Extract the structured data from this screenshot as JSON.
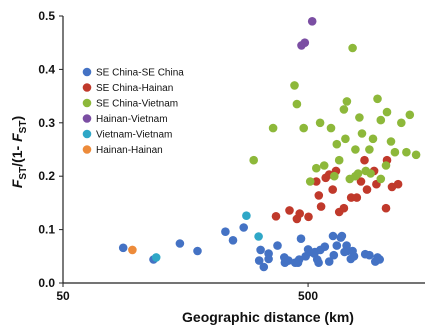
{
  "chart_data": {
    "type": "scatter",
    "title": "",
    "xlabel": "Geographic distance (km)",
    "ylabel_parts": {
      "main": "F",
      "sub": "ST",
      "mid": "/(1- ",
      "main2": "F",
      "sub2": "ST",
      "end": ")"
    },
    "xscale": "log",
    "xlim": [
      50,
      1500
    ],
    "ylim": [
      0,
      0.5
    ],
    "xticks": [
      {
        "value": 50,
        "label": "50"
      },
      {
        "value": 500,
        "label": "500"
      }
    ],
    "yticks": [
      {
        "value": 0.0,
        "label": "0.0"
      },
      {
        "value": 0.1,
        "label": "0.1"
      },
      {
        "value": 0.2,
        "label": "0.2"
      },
      {
        "value": 0.3,
        "label": "0.3"
      },
      {
        "value": 0.4,
        "label": "0.4"
      },
      {
        "value": 0.5,
        "label": "0.5"
      }
    ],
    "grid": false,
    "legend_position": "top-left",
    "series": [
      {
        "name": "SE China-SE China",
        "color": "#4472C4",
        "points": [
          [
            88,
            0.066
          ],
          [
            117,
            0.044
          ],
          [
            150,
            0.074
          ],
          [
            177,
            0.06
          ],
          [
            230,
            0.096
          ],
          [
            247,
            0.08
          ],
          [
            273,
            0.104
          ],
          [
            316,
            0.042
          ],
          [
            330,
            0.03
          ],
          [
            345,
            0.055
          ],
          [
            375,
            0.07
          ],
          [
            400,
            0.048
          ],
          [
            416,
            0.042
          ],
          [
            443,
            0.038
          ],
          [
            460,
            0.044
          ],
          [
            468,
            0.083
          ],
          [
            489,
            0.05
          ],
          [
            500,
            0.063
          ],
          [
            510,
            0.058
          ],
          [
            530,
            0.055
          ],
          [
            545,
            0.044
          ],
          [
            552,
            0.038
          ],
          [
            561,
            0.062
          ],
          [
            585,
            0.068
          ],
          [
            610,
            0.04
          ],
          [
            637,
            0.052
          ],
          [
            655,
            0.07
          ],
          [
            680,
            0.085
          ],
          [
            704,
            0.058
          ],
          [
            725,
            0.06
          ],
          [
            747,
            0.045
          ],
          [
            770,
            0.05
          ],
          [
            855,
            0.054
          ],
          [
            890,
            0.052
          ],
          [
            940,
            0.04
          ],
          [
            960,
            0.048
          ],
          [
            320,
            0.062
          ],
          [
            345,
            0.045
          ],
          [
            402,
            0.038
          ],
          [
            455,
            0.038
          ],
          [
            533,
            0.058
          ],
          [
            632,
            0.088
          ],
          [
            687,
            0.088
          ],
          [
            718,
            0.07
          ],
          [
            760,
            0.06
          ],
          [
            980,
            0.044
          ]
        ]
      },
      {
        "name": "SE China-Hainan",
        "color": "#C0392B",
        "points": [
          [
            370,
            0.125
          ],
          [
            420,
            0.136
          ],
          [
            450,
            0.12
          ],
          [
            462,
            0.13
          ],
          [
            502,
            0.124
          ],
          [
            540,
            0.19
          ],
          [
            553,
            0.164
          ],
          [
            565,
            0.143
          ],
          [
            590,
            0.197
          ],
          [
            610,
            0.203
          ],
          [
            630,
            0.175
          ],
          [
            650,
            0.21
          ],
          [
            670,
            0.133
          ],
          [
            700,
            0.14
          ],
          [
            750,
            0.16
          ],
          [
            790,
            0.16
          ],
          [
            822,
            0.19
          ],
          [
            850,
            0.23
          ],
          [
            870,
            0.175
          ],
          [
            930,
            0.21
          ],
          [
            950,
            0.185
          ],
          [
            1040,
            0.14
          ],
          [
            1100,
            0.18
          ],
          [
            1050,
            0.23
          ],
          [
            1165,
            0.185
          ]
        ]
      },
      {
        "name": "SE China-Vietnam",
        "color": "#8DB83A",
        "points": [
          [
            300,
            0.23
          ],
          [
            360,
            0.29
          ],
          [
            440,
            0.37
          ],
          [
            450,
            0.335
          ],
          [
            480,
            0.29
          ],
          [
            510,
            0.19
          ],
          [
            540,
            0.215
          ],
          [
            560,
            0.3
          ],
          [
            582,
            0.22
          ],
          [
            620,
            0.29
          ],
          [
            640,
            0.2
          ],
          [
            670,
            0.23
          ],
          [
            700,
            0.325
          ],
          [
            720,
            0.34
          ],
          [
            760,
            0.44
          ],
          [
            780,
            0.25
          ],
          [
            800,
            0.205
          ],
          [
            830,
            0.28
          ],
          [
            860,
            0.21
          ],
          [
            890,
            0.25
          ],
          [
            920,
            0.27
          ],
          [
            960,
            0.345
          ],
          [
            990,
            0.305
          ],
          [
            1050,
            0.32
          ],
          [
            1090,
            0.265
          ],
          [
            1130,
            0.245
          ],
          [
            1200,
            0.3
          ],
          [
            1260,
            0.245
          ],
          [
            1300,
            0.315
          ],
          [
            1380,
            0.24
          ],
          [
            740,
            0.195
          ],
          [
            780,
            0.2
          ],
          [
            900,
            0.205
          ],
          [
            990,
            0.195
          ],
          [
            1040,
            0.22
          ],
          [
            810,
            0.31
          ],
          [
            655,
            0.26
          ],
          [
            710,
            0.27
          ]
        ]
      },
      {
        "name": "Hainan-Vietnam",
        "color": "#7B4EA3",
        "points": [
          [
            470,
            0.445
          ],
          [
            485,
            0.45
          ],
          [
            520,
            0.49
          ]
        ]
      },
      {
        "name": "Vietnam-Vietnam",
        "color": "#2FA7C7",
        "points": [
          [
            120,
            0.048
          ],
          [
            280,
            0.126
          ],
          [
            314,
            0.087
          ]
        ]
      },
      {
        "name": "Hainan-Hainan",
        "color": "#ED8B3A",
        "points": [
          [
            96,
            0.062
          ]
        ]
      }
    ]
  }
}
